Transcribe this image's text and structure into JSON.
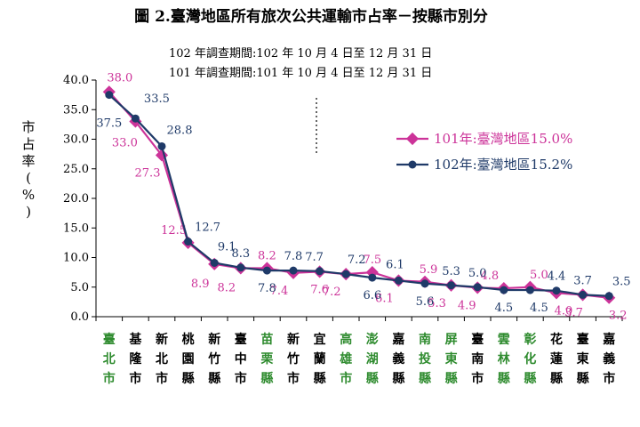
{
  "chart_data": {
    "type": "line",
    "title": "圖 2.臺灣地區所有旅次公共運輸市占率－按縣市別分",
    "notes": [
      "102 年調查期間:102 年 10 月 4 日至 12 月 31 日",
      "101 年調查期間:101 年 10 月 4 日至 12 月 31 日"
    ],
    "ylabel": "市占率(%)",
    "ylim": [
      0,
      40
    ],
    "yticks": [
      "0.0",
      "5.0",
      "10.0",
      "15.0",
      "20.0",
      "25.0",
      "30.0",
      "35.0",
      "40.0"
    ],
    "categories": [
      "臺北市",
      "基隆市",
      "新北市",
      "桃園縣",
      "新竹縣",
      "臺中市",
      "苗栗縣",
      "新竹市",
      "宜蘭縣",
      "高雄市",
      "澎湖縣",
      "嘉義縣",
      "南投縣",
      "屏東縣",
      "臺南市",
      "雲林縣",
      "彰化縣",
      "花蓮縣",
      "臺東縣",
      "嘉義市"
    ],
    "category_colors": [
      "#2e8b2e",
      "#000000",
      "#000000",
      "#000000",
      "#000000",
      "#000000",
      "#2e8b2e",
      "#000000",
      "#000000",
      "#2e8b2e",
      "#2e8b2e",
      "#000000",
      "#2e8b2e",
      "#2e8b2e",
      "#000000",
      "#2e8b2e",
      "#2e8b2e",
      "#000000",
      "#000000",
      "#000000"
    ],
    "series": [
      {
        "name": "101年:臺灣地區15.0%",
        "color": "#cc3399",
        "values": [
          38.0,
          33.0,
          27.3,
          12.5,
          8.9,
          8.2,
          8.2,
          7.4,
          7.6,
          7.2,
          7.5,
          6.1,
          5.9,
          5.3,
          4.9,
          4.8,
          5.0,
          4.0,
          3.7,
          3.2
        ],
        "labels": [
          "38.0",
          "33.0",
          "27.3",
          "12.5",
          "8.9",
          "8.2",
          "8.2",
          "7.4",
          "7.6",
          "7.2",
          "7.5",
          "6.1",
          "5.9",
          "5.3",
          "4.9",
          "4.8",
          "5.0",
          "4.0",
          "3.7",
          "3.2"
        ]
      },
      {
        "name": "102年:臺灣地區15.2%",
        "color": "#1f3a68",
        "values": [
          37.5,
          33.5,
          28.8,
          12.7,
          9.1,
          8.3,
          7.8,
          7.8,
          7.7,
          7.2,
          6.6,
          6.1,
          5.6,
          5.3,
          5.0,
          4.5,
          4.5,
          4.4,
          3.7,
          3.5
        ],
        "labels": [
          "37.5",
          "33.5",
          "28.8",
          "12.7",
          "9.1",
          "8.3",
          "7.8",
          "7.8",
          "7.7",
          "7.2",
          "6.6",
          "6.1",
          "5.6",
          "5.3",
          "5.0",
          "4.5",
          "4.5",
          "4.4",
          "3.7",
          "3.5"
        ]
      }
    ],
    "legend_position": "right"
  }
}
